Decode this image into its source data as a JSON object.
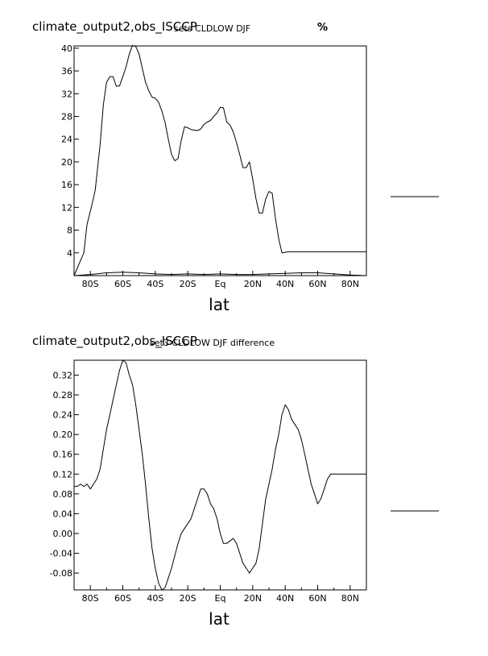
{
  "chart_data": [
    {
      "type": "line",
      "title": "climate_output2,obs_ISCCP",
      "subtitle": "sets CLDLOW DJF",
      "units": "%",
      "xlabel": "lat",
      "ylabel": "",
      "xlim": [
        -90,
        90
      ],
      "ylim": [
        0,
        40.4
      ],
      "yticks": [
        4,
        8,
        12,
        16,
        20,
        24,
        28,
        32,
        36,
        40
      ],
      "yticklabels": [
        "4",
        "8",
        "12",
        "16",
        "20",
        "24",
        "28",
        "32",
        "36",
        "40"
      ],
      "xticks": [
        -80,
        -60,
        -40,
        -20,
        0,
        20,
        40,
        60,
        80
      ],
      "xticklabels": [
        "80S",
        "60S",
        "40S",
        "20S",
        "Eq",
        "20N",
        "40N",
        "60N",
        "80N"
      ],
      "series": [
        {
          "x": [
            -90,
            -87,
            -84,
            -82,
            -79,
            -77,
            -74,
            -72,
            -70,
            -68,
            -66,
            -64,
            -62,
            -60,
            -58,
            -56,
            -54,
            -52,
            -50,
            -48,
            -46,
            -44,
            -42,
            -40,
            -38,
            -36,
            -34,
            -32,
            -30,
            -28,
            -26,
            -24,
            -22,
            -20,
            -18,
            -16,
            -14,
            -12,
            -10,
            -8,
            -6,
            -4,
            -2,
            0,
            2,
            4,
            6,
            8,
            10,
            12,
            14,
            16,
            18,
            20,
            22,
            24,
            26,
            28,
            30,
            32,
            34,
            36,
            38,
            40,
            42,
            44,
            46,
            48,
            50,
            52,
            54,
            56,
            58,
            60,
            62,
            64,
            66,
            68,
            70,
            72,
            74,
            76,
            78,
            80,
            82,
            84,
            86,
            88,
            90
          ],
          "y": [
            0.0,
            2.0,
            4.0,
            9.0,
            12.5,
            15.0,
            23.0,
            30.0,
            34.0,
            35.0,
            35.0,
            33.3,
            33.4,
            35.0,
            36.7,
            39.0,
            40.5,
            40.3,
            39.0,
            36.5,
            34.0,
            32.5,
            31.4,
            31.2,
            30.5,
            29.0,
            27.0,
            24.0,
            21.3,
            20.2,
            20.6,
            23.8,
            26.2,
            26.0,
            25.7,
            25.6,
            25.5,
            25.8,
            26.6,
            27.0,
            27.3,
            28.0,
            28.6,
            29.6,
            29.5,
            27.0,
            26.5,
            25.3,
            23.4,
            21.3,
            19.0,
            19.0,
            20.0,
            17.0,
            13.5,
            11.0,
            11.0,
            13.5,
            14.8,
            14.5,
            10.0,
            6.5,
            4.0,
            4.1,
            4.2,
            4.2,
            4.2,
            4.2,
            4.2,
            4.2,
            4.2,
            4.2,
            4.2,
            4.2,
            4.2,
            4.2,
            4.2,
            4.2,
            4.2,
            4.2,
            4.2,
            4.2,
            4.2,
            4.2,
            4.2,
            4.2,
            4.2,
            4.2,
            4.2
          ]
        },
        {
          "x": [
            -90,
            -80,
            -70,
            -60,
            -50,
            -40,
            -30,
            -20,
            -10,
            0,
            10,
            20,
            30,
            40,
            50,
            60,
            70,
            80,
            90
          ],
          "y": [
            0.0,
            0.2,
            0.5,
            0.6,
            0.5,
            0.3,
            0.2,
            0.3,
            0.2,
            0.3,
            0.2,
            0.2,
            0.3,
            0.4,
            0.5,
            0.5,
            0.3,
            0.1,
            0.0
          ]
        }
      ]
    },
    {
      "type": "line",
      "title": "climate_output2,obs_ISCCP",
      "subtitle": "set3 CLDLOW DJF difference",
      "units": "",
      "xlabel": "lat",
      "ylabel": "",
      "xlim": [
        -90,
        90
      ],
      "ylim": [
        -0.114,
        0.35
      ],
      "yticks": [
        -0.08,
        -0.04,
        0.0,
        0.04,
        0.08,
        0.12,
        0.16,
        0.2,
        0.24,
        0.28,
        0.32
      ],
      "yticklabels": [
        "-0.08",
        "-0.04",
        "0.00",
        "0.04",
        "0.08",
        "0.12",
        "0.16",
        "0.20",
        "0.24",
        "0.28",
        "0.32"
      ],
      "xticks": [
        -80,
        -60,
        -40,
        -20,
        0,
        20,
        40,
        60,
        80
      ],
      "xticklabels": [
        "80S",
        "60S",
        "40S",
        "20S",
        "Eq",
        "20N",
        "40N",
        "60N",
        "80N"
      ],
      "series": [
        {
          "x": [
            -90,
            -88,
            -86,
            -84,
            -82,
            -80,
            -78,
            -76,
            -74,
            -72,
            -70,
            -68,
            -66,
            -64,
            -62,
            -60,
            -58,
            -56,
            -54,
            -52,
            -50,
            -48,
            -46,
            -44,
            -42,
            -40,
            -38,
            -36,
            -34,
            -32,
            -30,
            -28,
            -26,
            -24,
            -22,
            -20,
            -18,
            -16,
            -14,
            -12,
            -10,
            -8,
            -6,
            -4,
            -2,
            0,
            2,
            4,
            6,
            8,
            10,
            12,
            14,
            16,
            18,
            20,
            22,
            24,
            26,
            28,
            30,
            32,
            34,
            36,
            38,
            40,
            42,
            44,
            46,
            48,
            50,
            52,
            54,
            56,
            58,
            60,
            62,
            64,
            66,
            68,
            70,
            72,
            74,
            76,
            78,
            80,
            82,
            84,
            86,
            88,
            90
          ],
          "y": [
            0.095,
            0.095,
            0.1,
            0.095,
            0.1,
            0.09,
            0.1,
            0.11,
            0.13,
            0.17,
            0.21,
            0.24,
            0.27,
            0.3,
            0.33,
            0.35,
            0.345,
            0.32,
            0.3,
            0.26,
            0.21,
            0.16,
            0.1,
            0.03,
            -0.03,
            -0.07,
            -0.1,
            -0.114,
            -0.11,
            -0.09,
            -0.07,
            -0.045,
            -0.02,
            0.0,
            0.01,
            0.02,
            0.03,
            0.05,
            0.07,
            0.09,
            0.09,
            0.08,
            0.06,
            0.05,
            0.03,
            0.0,
            -0.02,
            -0.02,
            -0.015,
            -0.01,
            -0.02,
            -0.04,
            -0.06,
            -0.07,
            -0.08,
            -0.07,
            -0.06,
            -0.03,
            0.02,
            0.07,
            0.1,
            0.13,
            0.17,
            0.2,
            0.24,
            0.26,
            0.25,
            0.23,
            0.22,
            0.21,
            0.19,
            0.16,
            0.13,
            0.1,
            0.08,
            0.06,
            0.07,
            0.09,
            0.11,
            0.12,
            0.12,
            0.12,
            0.12,
            0.12,
            0.12,
            0.12,
            0.12,
            0.12,
            0.12,
            0.12,
            0.12
          ]
        }
      ]
    }
  ]
}
